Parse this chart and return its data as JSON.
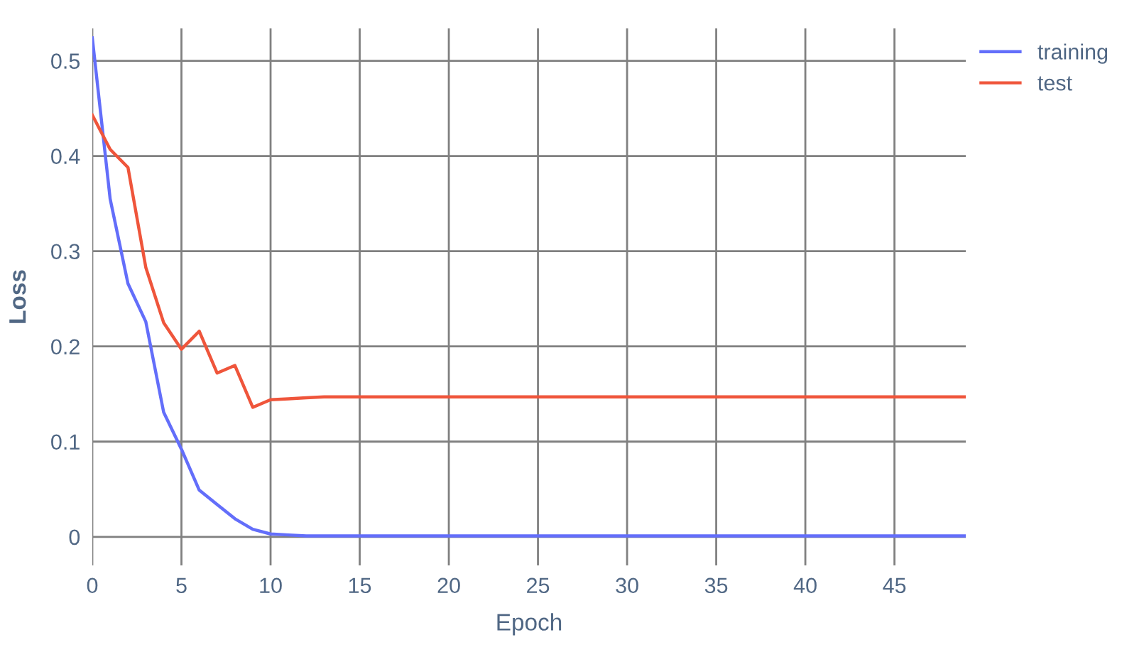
{
  "chart_data": {
    "type": "line",
    "xlabel": "Epoch",
    "ylabel": "Loss",
    "x": [
      0,
      1,
      2,
      3,
      4,
      5,
      6,
      7,
      8,
      9,
      10,
      11,
      12,
      13,
      14,
      15,
      16,
      17,
      18,
      19,
      20,
      21,
      22,
      23,
      24,
      25,
      26,
      27,
      28,
      29,
      30,
      31,
      32,
      33,
      34,
      35,
      36,
      37,
      38,
      39,
      40,
      41,
      42,
      43,
      44,
      45,
      46,
      47,
      48,
      49
    ],
    "series": [
      {
        "name": "training",
        "color": "#636efa",
        "values": [
          0.524,
          0.355,
          0.266,
          0.226,
          0.131,
          0.092,
          0.049,
          0.034,
          0.019,
          0.008,
          0.003,
          0.002,
          0.001,
          0.001,
          0.001,
          0.001,
          0.001,
          0.001,
          0.001,
          0.001,
          0.001,
          0.001,
          0.001,
          0.001,
          0.001,
          0.001,
          0.001,
          0.001,
          0.001,
          0.001,
          0.001,
          0.001,
          0.001,
          0.001,
          0.001,
          0.001,
          0.001,
          0.001,
          0.001,
          0.001,
          0.001,
          0.001,
          0.001,
          0.001,
          0.001,
          0.001,
          0.001,
          0.001,
          0.001,
          0.001
        ]
      },
      {
        "name": "test",
        "color": "#ef553b",
        "values": [
          0.443,
          0.407,
          0.388,
          0.283,
          0.225,
          0.197,
          0.216,
          0.172,
          0.18,
          0.136,
          0.144,
          0.145,
          0.146,
          0.147,
          0.147,
          0.147,
          0.147,
          0.147,
          0.147,
          0.147,
          0.147,
          0.147,
          0.147,
          0.147,
          0.147,
          0.147,
          0.147,
          0.147,
          0.147,
          0.147,
          0.147,
          0.147,
          0.147,
          0.147,
          0.147,
          0.147,
          0.147,
          0.147,
          0.147,
          0.147,
          0.147,
          0.147,
          0.147,
          0.147,
          0.147,
          0.147,
          0.147,
          0.147,
          0.147,
          0.147
        ]
      }
    ],
    "xlim": [
      0,
      49
    ],
    "xticks": [
      0,
      5,
      10,
      15,
      20,
      25,
      30,
      35,
      40,
      45
    ],
    "ylim": [
      -0.03,
      0.534
    ],
    "yticks": [
      0,
      0.1,
      0.2,
      0.3,
      0.4,
      0.5
    ],
    "grid": true,
    "legend": "top right",
    "marker": "none",
    "line_style": "solid"
  }
}
